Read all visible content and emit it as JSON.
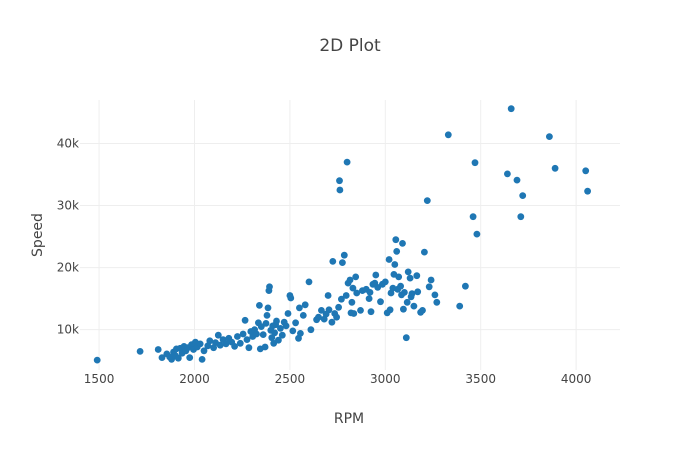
{
  "chart_data": {
    "type": "scatter",
    "title": "2D Plot",
    "xlabel": "RPM",
    "ylabel": "Speed",
    "xlim": [
      1400,
      4230
    ],
    "ylim": [
      3500,
      47000
    ],
    "x_ticks": [
      1500,
      2000,
      2500,
      3000,
      3500,
      4000
    ],
    "x_tick_labels": [
      "1500",
      "2000",
      "2500",
      "3000",
      "3500",
      "4000"
    ],
    "y_ticks": [
      10000,
      20000,
      30000,
      40000
    ],
    "y_tick_labels": [
      "10k",
      "20k",
      "30k",
      "40k"
    ],
    "grid": true,
    "legend": "none",
    "colors": {
      "marker": "#1f77b4",
      "grid": "#eeeeee",
      "text": "#444444"
    },
    "points": [
      [
        1490,
        5100
      ],
      [
        1715,
        6500
      ],
      [
        1810,
        6800
      ],
      [
        1830,
        5500
      ],
      [
        1855,
        6100
      ],
      [
        1870,
        5600
      ],
      [
        1880,
        5200
      ],
      [
        1890,
        6400
      ],
      [
        1900,
        5800
      ],
      [
        1905,
        6900
      ],
      [
        1915,
        5400
      ],
      [
        1925,
        7000
      ],
      [
        1935,
        6200
      ],
      [
        1945,
        7300
      ],
      [
        1955,
        6600
      ],
      [
        1965,
        7100
      ],
      [
        1975,
        5500
      ],
      [
        1985,
        7600
      ],
      [
        1995,
        6800
      ],
      [
        2005,
        8000
      ],
      [
        2015,
        7200
      ],
      [
        2030,
        7700
      ],
      [
        2040,
        5200
      ],
      [
        2050,
        6600
      ],
      [
        2070,
        7400
      ],
      [
        2080,
        8200
      ],
      [
        2100,
        7100
      ],
      [
        2110,
        7900
      ],
      [
        2125,
        9100
      ],
      [
        2135,
        7500
      ],
      [
        2150,
        8400
      ],
      [
        2165,
        7700
      ],
      [
        2180,
        8600
      ],
      [
        2195,
        8000
      ],
      [
        2210,
        7300
      ],
      [
        2225,
        8900
      ],
      [
        2240,
        7800
      ],
      [
        2255,
        9300
      ],
      [
        2265,
        11500
      ],
      [
        2275,
        8400
      ],
      [
        2285,
        7100
      ],
      [
        2295,
        9700
      ],
      [
        2305,
        8900
      ],
      [
        2315,
        10000
      ],
      [
        2325,
        9300
      ],
      [
        2335,
        11100
      ],
      [
        2340,
        13900
      ],
      [
        2345,
        6900
      ],
      [
        2350,
        10500
      ],
      [
        2360,
        9200
      ],
      [
        2370,
        7200
      ],
      [
        2375,
        11000
      ],
      [
        2380,
        12300
      ],
      [
        2385,
        13500
      ],
      [
        2390,
        16300
      ],
      [
        2393,
        16900
      ],
      [
        2400,
        9900
      ],
      [
        2405,
        8700
      ],
      [
        2410,
        10600
      ],
      [
        2415,
        7800
      ],
      [
        2420,
        9500
      ],
      [
        2425,
        10800
      ],
      [
        2430,
        11400
      ],
      [
        2440,
        8300
      ],
      [
        2450,
        10200
      ],
      [
        2460,
        9100
      ],
      [
        2470,
        11200
      ],
      [
        2480,
        10600
      ],
      [
        2490,
        12600
      ],
      [
        2500,
        15500
      ],
      [
        2505,
        15100
      ],
      [
        2515,
        9800
      ],
      [
        2530,
        11100
      ],
      [
        2545,
        8600
      ],
      [
        2550,
        13500
      ],
      [
        2555,
        9400
      ],
      [
        2570,
        12300
      ],
      [
        2580,
        14000
      ],
      [
        2600,
        17700
      ],
      [
        2610,
        10000
      ],
      [
        2640,
        11600
      ],
      [
        2650,
        12000
      ],
      [
        2665,
        13100
      ],
      [
        2680,
        11700
      ],
      [
        2690,
        12500
      ],
      [
        2700,
        15500
      ],
      [
        2705,
        13200
      ],
      [
        2720,
        11200
      ],
      [
        2725,
        21000
      ],
      [
        2735,
        12600
      ],
      [
        2745,
        12000
      ],
      [
        2755,
        13600
      ],
      [
        2760,
        34000
      ],
      [
        2762,
        32500
      ],
      [
        2770,
        14900
      ],
      [
        2775,
        20800
      ],
      [
        2785,
        22000
      ],
      [
        2795,
        15500
      ],
      [
        2800,
        37000
      ],
      [
        2805,
        17500
      ],
      [
        2815,
        18000
      ],
      [
        2820,
        12700
      ],
      [
        2825,
        14400
      ],
      [
        2830,
        16700
      ],
      [
        2835,
        12600
      ],
      [
        2845,
        18500
      ],
      [
        2850,
        15900
      ],
      [
        2870,
        13100
      ],
      [
        2880,
        16300
      ],
      [
        2900,
        16500
      ],
      [
        2915,
        15000
      ],
      [
        2920,
        16000
      ],
      [
        2925,
        12900
      ],
      [
        2935,
        17300
      ],
      [
        2945,
        17500
      ],
      [
        2950,
        18800
      ],
      [
        2960,
        16800
      ],
      [
        2975,
        14500
      ],
      [
        2985,
        17300
      ],
      [
        3000,
        17700
      ],
      [
        3010,
        12700
      ],
      [
        3020,
        21300
      ],
      [
        3025,
        13200
      ],
      [
        3030,
        15900
      ],
      [
        3040,
        16700
      ],
      [
        3045,
        18900
      ],
      [
        3050,
        20500
      ],
      [
        3055,
        24500
      ],
      [
        3060,
        22600
      ],
      [
        3065,
        16500
      ],
      [
        3070,
        18500
      ],
      [
        3080,
        17000
      ],
      [
        3085,
        15600
      ],
      [
        3090,
        23900
      ],
      [
        3095,
        13300
      ],
      [
        3100,
        16000
      ],
      [
        3110,
        8700
      ],
      [
        3115,
        14400
      ],
      [
        3120,
        19300
      ],
      [
        3130,
        18300
      ],
      [
        3135,
        15300
      ],
      [
        3140,
        15800
      ],
      [
        3150,
        13800
      ],
      [
        3165,
        18700
      ],
      [
        3170,
        16100
      ],
      [
        3185,
        12800
      ],
      [
        3195,
        13100
      ],
      [
        3205,
        22500
      ],
      [
        3220,
        30800
      ],
      [
        3230,
        16900
      ],
      [
        3240,
        18000
      ],
      [
        3260,
        15600
      ],
      [
        3270,
        14400
      ],
      [
        3330,
        41400
      ],
      [
        3390,
        13800
      ],
      [
        3420,
        17000
      ],
      [
        3460,
        28200
      ],
      [
        3470,
        36900
      ],
      [
        3480,
        25400
      ],
      [
        3640,
        35100
      ],
      [
        3660,
        45600
      ],
      [
        3690,
        34100
      ],
      [
        3710,
        28200
      ],
      [
        3720,
        31600
      ],
      [
        3860,
        41100
      ],
      [
        3890,
        36000
      ],
      [
        4050,
        35600
      ],
      [
        4060,
        32300
      ]
    ]
  }
}
